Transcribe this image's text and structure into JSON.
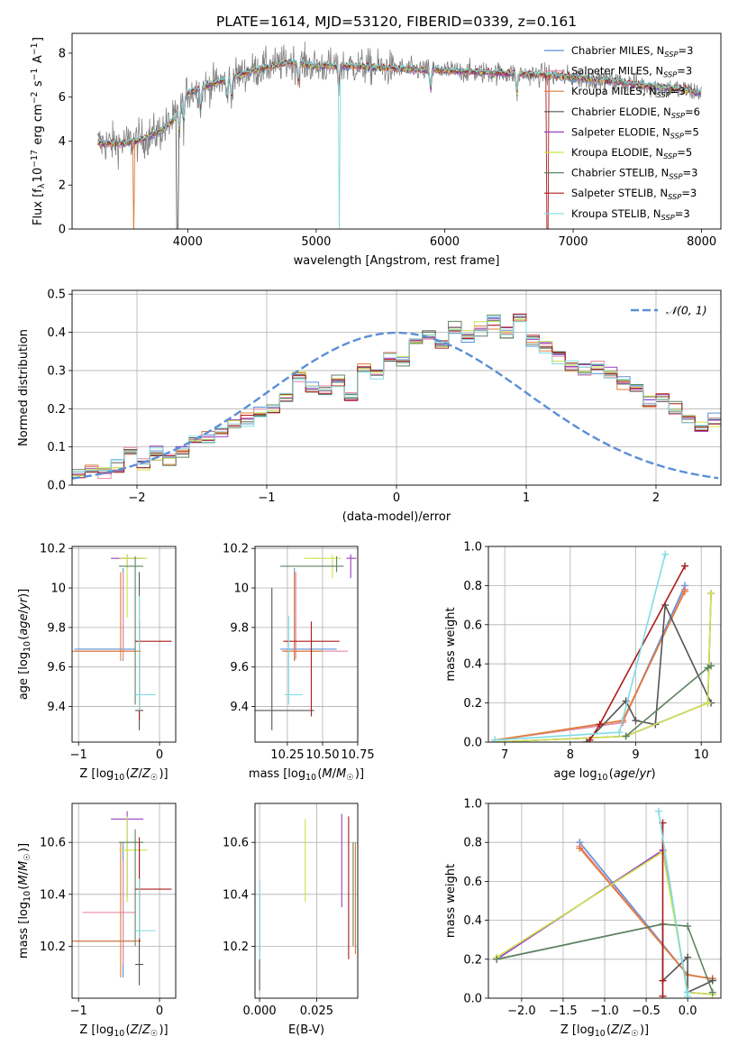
{
  "figure_title": "PLATE=1614, MJD=53120, FIBERID=0339, z=0.161",
  "colors": {
    "Chabrier MILES": "#5b8fd6",
    "Salpeter MILES": "#e98aa6",
    "Kroupa MILES": "#e07c35",
    "Chabrier ELODIE": "#555555",
    "Salpeter ELODIE": "#9b3fc0",
    "Kroupa ELODIE": "#cce34a",
    "Chabrier STELIB": "#5e8360",
    "Salpeter STELIB": "#aa1c1c",
    "Kroupa STELIB": "#82dbe4",
    "normal": "#5b8fd6",
    "grid": "#b0b0b0"
  },
  "chart_data": [
    {
      "type": "line",
      "panel": "spectrum",
      "title": "PLATE=1614, MJD=53120, FIBERID=0339, z=0.161",
      "xlabel": "wavelength [Angstrom, rest frame]",
      "ylabel": "Flux [f_λ 10^-17 erg cm^-2 s^-1 A^-1]",
      "xlim": [
        3100,
        8150
      ],
      "ylim": [
        0,
        8.9
      ],
      "xticks": [
        4000,
        5000,
        6000,
        7000,
        8000
      ],
      "yticks": [
        0,
        2,
        4,
        6,
        8
      ],
      "grid": false,
      "legend_position": "top-right",
      "legend": [
        {
          "name": "Chabrier MILES",
          "nssp": "3"
        },
        {
          "name": "Salpeter MILES",
          "nssp": "3"
        },
        {
          "name": "Kroupa MILES",
          "nssp": "3"
        },
        {
          "name": "Chabrier ELODIE",
          "nssp": "6"
        },
        {
          "name": "Salpeter ELODIE",
          "nssp": "5"
        },
        {
          "name": "Kroupa ELODIE",
          "nssp": "5"
        },
        {
          "name": "Chabrier STELIB",
          "nssp": "3"
        },
        {
          "name": "Salpeter STELIB",
          "nssp": "3"
        },
        {
          "name": "Kroupa STELIB",
          "nssp": "3"
        }
      ],
      "data_range": [
        3300,
        8000
      ],
      "continuum": {
        "x": [
          3300,
          3500,
          3600,
          3700,
          3800,
          3900,
          4000,
          4200,
          4500,
          4800,
          5000,
          5300,
          5600,
          6000,
          6400,
          6800,
          7200,
          7600,
          7900,
          8000
        ],
        "y": [
          3.9,
          3.9,
          4.0,
          4.2,
          4.5,
          5.0,
          6.2,
          6.6,
          7.2,
          7.6,
          7.4,
          7.4,
          7.3,
          7.2,
          7.1,
          7.0,
          6.8,
          6.5,
          6.3,
          6.2
        ]
      },
      "absorption_lines": [
        3934,
        3969,
        4102,
        4305,
        4340,
        4861,
        5175,
        5890,
        6563
      ]
    },
    {
      "type": "step",
      "panel": "residuals",
      "xlabel": "(data-model)/error",
      "ylabel": "Normed distribution",
      "xlim": [
        -2.5,
        2.5
      ],
      "ylim": [
        0,
        0.51
      ],
      "xticks": [
        -2,
        -1,
        0,
        1,
        2
      ],
      "yticks": [
        0.0,
        0.1,
        0.2,
        0.3,
        0.4,
        0.5
      ],
      "grid": true,
      "legend_position": "top-right",
      "legend": [
        {
          "name": "𝒩(0, 1)"
        }
      ],
      "bin_width": 0.1,
      "bins_from": -2.5,
      "base_histogram": [
        0.03,
        0.04,
        0.04,
        0.05,
        0.09,
        0.06,
        0.08,
        0.07,
        0.09,
        0.12,
        0.13,
        0.14,
        0.16,
        0.17,
        0.19,
        0.2,
        0.23,
        0.28,
        0.26,
        0.25,
        0.27,
        0.23,
        0.31,
        0.3,
        0.34,
        0.33,
        0.37,
        0.4,
        0.37,
        0.41,
        0.39,
        0.41,
        0.43,
        0.4,
        0.44,
        0.38,
        0.36,
        0.34,
        0.31,
        0.3,
        0.31,
        0.29,
        0.27,
        0.25,
        0.22,
        0.23,
        0.2,
        0.17,
        0.15,
        0.17,
        0.13,
        0.12,
        0.1,
        0.09,
        0.08,
        0.07,
        0.07,
        0.05,
        0.05,
        0.04,
        0.04,
        0.03,
        0.03,
        0.02,
        0.02,
        0.02
      ]
    },
    {
      "type": "errorbar",
      "panel": "age-vs-Z",
      "xlabel": "Z [log10(Z/Z☉)]",
      "ylabel": "age [log10(age/yr)]",
      "xlim": [
        -1.08,
        0.2
      ],
      "ylim": [
        9.22,
        10.21
      ],
      "xticks": [
        -1,
        0
      ],
      "yticks": [
        9.4,
        9.6,
        9.8,
        10.0,
        10.2
      ],
      "grid": true,
      "points": [
        {
          "model": "Chabrier MILES",
          "x": -0.45,
          "xerr": [
            0.6,
            0.15
          ],
          "y": 9.69,
          "yerr": [
            0.06,
            0.41
          ]
        },
        {
          "model": "Salpeter MILES",
          "x": -0.45,
          "xerr": [
            0.6,
            0.15
          ],
          "y": 9.68,
          "yerr": [
            0.04,
            0.4
          ]
        },
        {
          "model": "Kroupa MILES",
          "x": -0.48,
          "xerr": [
            0.6,
            0.25
          ],
          "y": 9.68,
          "yerr": [
            0.05,
            0.4
          ]
        },
        {
          "model": "Chabrier ELODIE",
          "x": -0.25,
          "xerr": [
            0.05,
            0.05
          ],
          "y": 9.38,
          "yerr": [
            0.1,
            0.7
          ]
        },
        {
          "model": "Salpeter ELODIE",
          "x": -0.4,
          "xerr": [
            0.2,
            0.2
          ],
          "y": 10.15,
          "yerr": [
            0.05,
            0.02
          ]
        },
        {
          "model": "Kroupa ELODIE",
          "x": -0.4,
          "xerr": [
            0.1,
            0.25
          ],
          "y": 10.15,
          "yerr": [
            0.3,
            0.02
          ]
        },
        {
          "model": "Chabrier STELIB",
          "x": -0.3,
          "xerr": [
            0.2,
            0.1
          ],
          "y": 10.11,
          "yerr": [
            0.7,
            0.05
          ]
        },
        {
          "model": "Salpeter STELIB",
          "x": -0.25,
          "xerr": [
            0.05,
            0.4
          ],
          "y": 9.73,
          "yerr": [
            0.4,
            0.1
          ]
        },
        {
          "model": "Kroupa STELIB",
          "x": -0.25,
          "xerr": [
            0.05,
            0.2
          ],
          "y": 9.46,
          "yerr": [
            0.08,
            0.5
          ]
        }
      ]
    },
    {
      "type": "errorbar",
      "panel": "age-vs-mass",
      "xlabel": "mass [log10(M/M☉)]",
      "ylabel": "",
      "xlim": [
        10.02,
        10.75
      ],
      "ylim": [
        9.22,
        10.21
      ],
      "xticks": [
        10.25,
        10.5,
        10.75
      ],
      "xticklabels": [
        "10.25",
        "10.50",
        "10.75"
      ],
      "yticks": [
        9.4,
        9.6,
        9.8,
        10.0,
        10.2
      ],
      "grid": true,
      "points": [
        {
          "model": "Chabrier MILES",
          "x": 10.3,
          "xerr": [
            0.1,
            0.3
          ],
          "y": 9.69,
          "yerr": [
            0.06,
            0.41
          ]
        },
        {
          "model": "Salpeter MILES",
          "x": 10.31,
          "xerr": [
            0.1,
            0.37
          ],
          "y": 9.68,
          "yerr": [
            0.04,
            0.4
          ]
        },
        {
          "model": "Kroupa MILES",
          "x": 10.3,
          "xerr": [
            0.08,
            0.2
          ],
          "y": 9.68,
          "yerr": [
            0.05,
            0.4
          ]
        },
        {
          "model": "Chabrier ELODIE",
          "x": 10.14,
          "xerr": [
            0.12,
            0.3
          ],
          "y": 9.38,
          "yerr": [
            0.1,
            0.62
          ]
        },
        {
          "model": "Salpeter ELODIE",
          "x": 10.7,
          "xerr": [
            0.03,
            0.04
          ],
          "y": 10.15,
          "yerr": [
            0.1,
            0.02
          ]
        },
        {
          "model": "Kroupa ELODIE",
          "x": 10.57,
          "xerr": [
            0.2,
            0.06
          ],
          "y": 10.15,
          "yerr": [
            0.1,
            0.02
          ]
        },
        {
          "model": "Chabrier STELIB",
          "x": 10.6,
          "xerr": [
            0.4,
            0.05
          ],
          "y": 10.11,
          "yerr": [
            0.03,
            0.05
          ]
        },
        {
          "model": "Salpeter STELIB",
          "x": 10.42,
          "xerr": [
            0.2,
            0.2
          ],
          "y": 9.73,
          "yerr": [
            0.38,
            0.1
          ]
        },
        {
          "model": "Kroupa STELIB",
          "x": 10.26,
          "xerr": [
            0.03,
            0.1
          ],
          "y": 9.46,
          "yerr": [
            0.05,
            0.4
          ]
        }
      ]
    },
    {
      "type": "line",
      "panel": "mass-weight-vs-age",
      "xlabel": "age log10(age/yr)",
      "ylabel": "mass weight",
      "xlim": [
        6.75,
        10.3
      ],
      "ylim": [
        0,
        1.0
      ],
      "xticks": [
        7,
        8,
        9,
        10
      ],
      "yticks": [
        0.0,
        0.2,
        0.4,
        0.6,
        0.8,
        1.0
      ],
      "grid": true,
      "series": [
        {
          "model": "Chabrier MILES",
          "x": [
            6.85,
            8.8,
            9.75
          ],
          "y": [
            0.01,
            0.1,
            0.8
          ]
        },
        {
          "model": "Salpeter MILES",
          "x": [
            6.85,
            8.8,
            9.75
          ],
          "y": [
            0.01,
            0.1,
            0.78
          ]
        },
        {
          "model": "Kroupa MILES",
          "x": [
            6.85,
            8.8,
            9.75
          ],
          "y": [
            0.01,
            0.11,
            0.77
          ]
        },
        {
          "model": "Chabrier ELODIE",
          "x": [
            8.25,
            8.85,
            9.0,
            9.3,
            9.45,
            10.15
          ],
          "y": [
            0.0,
            0.21,
            0.11,
            0.09,
            0.7,
            0.2
          ]
        },
        {
          "model": "Salpeter ELODIE",
          "x": [
            6.85,
            8.85,
            10.1,
            10.15
          ],
          "y": [
            0.0,
            0.03,
            0.2,
            0.76
          ]
        },
        {
          "model": "Kroupa ELODIE",
          "x": [
            6.85,
            8.85,
            10.1,
            10.15
          ],
          "y": [
            0.0,
            0.03,
            0.2,
            0.76
          ]
        },
        {
          "model": "Chabrier STELIB",
          "x": [
            8.85,
            10.1,
            10.15
          ],
          "y": [
            0.03,
            0.38,
            0.39
          ]
        },
        {
          "model": "Salpeter STELIB",
          "x": [
            8.3,
            8.45,
            9.75
          ],
          "y": [
            0.01,
            0.09,
            0.9
          ]
        },
        {
          "model": "Kroupa STELIB",
          "x": [
            6.85,
            8.75,
            9.45
          ],
          "y": [
            0.01,
            0.05,
            0.96
          ]
        }
      ]
    },
    {
      "type": "errorbar",
      "panel": "mass-vs-Z",
      "xlabel": "Z [log10(Z/Z☉)]",
      "ylabel": "mass [log10(M/M☉)]",
      "xlim": [
        -1.08,
        0.2
      ],
      "ylim": [
        10.0,
        10.75
      ],
      "xticks": [
        -1,
        0
      ],
      "yticks": [
        10.2,
        10.4,
        10.6
      ],
      "grid": true,
      "points": [
        {
          "model": "Chabrier MILES",
          "x": -0.45,
          "xerr": [
            0.6,
            0.15
          ],
          "y": 10.22,
          "yerr": [
            0.14,
            0.38
          ]
        },
        {
          "model": "Salpeter MILES",
          "x": -0.45,
          "xerr": [
            0.5,
            0.15
          ],
          "y": 10.33,
          "yerr": [
            0.2,
            0.2
          ]
        },
        {
          "model": "Kroupa MILES",
          "x": -0.48,
          "xerr": [
            0.6,
            0.25
          ],
          "y": 10.22,
          "yerr": [
            0.14,
            0.38
          ]
        },
        {
          "model": "Chabrier ELODIE",
          "x": -0.25,
          "xerr": [
            0.05,
            0.05
          ],
          "y": 10.13,
          "yerr": [
            0.08,
            0.47
          ]
        },
        {
          "model": "Salpeter ELODIE",
          "x": -0.4,
          "xerr": [
            0.2,
            0.2
          ],
          "y": 10.69,
          "yerr": [
            0.3,
            0.03
          ]
        },
        {
          "model": "Kroupa ELODIE",
          "x": -0.4,
          "xerr": [
            0.1,
            0.25
          ],
          "y": 10.57,
          "yerr": [
            0.2,
            0.13
          ]
        },
        {
          "model": "Chabrier STELIB",
          "x": -0.3,
          "xerr": [
            0.2,
            0.1
          ],
          "y": 10.6,
          "yerr": [
            0.4,
            0.05
          ]
        },
        {
          "model": "Salpeter STELIB",
          "x": -0.25,
          "xerr": [
            0.05,
            0.4
          ],
          "y": 10.42,
          "yerr": [
            0.2,
            0.2
          ]
        },
        {
          "model": "Kroupa STELIB",
          "x": -0.25,
          "xerr": [
            0.05,
            0.2
          ],
          "y": 10.26,
          "yerr": [
            0.03,
            0.2
          ]
        }
      ]
    },
    {
      "type": "errorbar",
      "panel": "mass-vs-EBV",
      "xlabel": "E(B-V)",
      "ylabel": "",
      "xlim": [
        -0.002,
        0.043
      ],
      "ylim": [
        10.0,
        10.75
      ],
      "xticks": [
        0.0,
        0.025
      ],
      "xticklabels": [
        "0.000",
        "0.025"
      ],
      "yticks": [
        10.2,
        10.4,
        10.6
      ],
      "grid": true,
      "points": [
        {
          "model": "Chabrier MILES",
          "x": 0.0,
          "y": 10.3,
          "yerr": [
            0.12,
            0.15
          ]
        },
        {
          "model": "Salpeter MILES",
          "x": 0.0,
          "y": 10.3,
          "yerr": [
            0.12,
            0.15
          ]
        },
        {
          "model": "Kroupa MILES",
          "x": 0.042,
          "y": 10.37,
          "yerr": [
            0.2,
            0.23
          ]
        },
        {
          "model": "Chabrier ELODIE",
          "x": 0.0,
          "y": 10.2,
          "yerr": [
            0.17,
            0.2
          ]
        },
        {
          "model": "Salpeter ELODIE",
          "x": 0.036,
          "y": 10.55,
          "yerr": [
            0.2,
            0.16
          ]
        },
        {
          "model": "Kroupa ELODIE",
          "x": 0.02,
          "y": 10.53,
          "yerr": [
            0.16,
            0.16
          ]
        },
        {
          "model": "Chabrier STELIB",
          "x": 0.041,
          "y": 10.4,
          "yerr": [
            0.2,
            0.2
          ]
        },
        {
          "model": "Salpeter STELIB",
          "x": 0.039,
          "y": 10.45,
          "yerr": [
            0.3,
            0.25
          ]
        },
        {
          "model": "Kroupa STELIB",
          "x": 0.0,
          "y": 10.3,
          "yerr": [
            0.15,
            0.15
          ]
        }
      ]
    },
    {
      "type": "line",
      "panel": "mass-weight-vs-Z",
      "xlabel": "Z [log10(Z/Z☉)]",
      "ylabel": "mass weight",
      "xlim": [
        -2.4,
        0.4
      ],
      "ylim": [
        0,
        1.0
      ],
      "xticks": [
        -2.0,
        -1.5,
        -1.0,
        -0.5,
        0.0
      ],
      "xticklabels": [
        "−2.0",
        "−1.5",
        "−1.0",
        "−0.5",
        "0.0"
      ],
      "yticks": [
        0.0,
        0.2,
        0.4,
        0.6,
        0.8,
        1.0
      ],
      "grid": true,
      "series": [
        {
          "model": "Chabrier MILES",
          "x": [
            -1.3,
            0.0,
            0.3
          ],
          "y": [
            0.8,
            0.12,
            0.1
          ]
        },
        {
          "model": "Salpeter MILES",
          "x": [
            -1.3,
            0.0,
            0.3
          ],
          "y": [
            0.78,
            0.12,
            0.1
          ]
        },
        {
          "model": "Kroupa MILES",
          "x": [
            -1.3,
            0.0,
            0.3
          ],
          "y": [
            0.77,
            0.12,
            0.1
          ]
        },
        {
          "model": "Chabrier ELODIE",
          "x": [
            -2.3,
            -0.3,
            -0.3,
            0.0,
            0.0,
            0.3
          ],
          "y": [
            0.2,
            0.38,
            0.09,
            0.21,
            0.03,
            0.09
          ]
        },
        {
          "model": "Salpeter ELODIE",
          "x": [
            -2.3,
            -0.3,
            0.0,
            0.3
          ],
          "y": [
            0.2,
            0.76,
            0.03,
            0.02
          ]
        },
        {
          "model": "Kroupa ELODIE",
          "x": [
            -2.3,
            -0.3,
            0.0,
            0.3
          ],
          "y": [
            0.21,
            0.75,
            0.03,
            0.02
          ]
        },
        {
          "model": "Chabrier STELIB",
          "x": [
            -2.3,
            -0.3,
            0.0,
            0.3
          ],
          "y": [
            0.2,
            0.38,
            0.37,
            0.03
          ]
        },
        {
          "model": "Salpeter STELIB",
          "x": [
            -0.3,
            -0.3,
            -0.3
          ],
          "y": [
            0.9,
            0.01,
            0.09
          ]
        },
        {
          "model": "Kroupa STELIB",
          "x": [
            -0.35,
            0.0,
            0.0
          ],
          "y": [
            0.96,
            0.01,
            0.03
          ]
        }
      ]
    }
  ]
}
